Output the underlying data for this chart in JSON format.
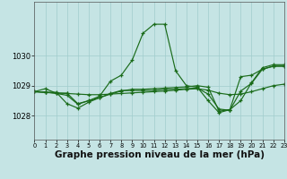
{
  "background_color": "#c5e4e4",
  "grid_color": "#a0cccc",
  "line_color": "#1a6b1a",
  "xlabel": "Graphe pression niveau de la mer (hPa)",
  "xlabel_fontsize": 7.5,
  "x_ticks": [
    0,
    1,
    2,
    3,
    4,
    5,
    6,
    7,
    8,
    9,
    10,
    11,
    12,
    13,
    14,
    15,
    16,
    17,
    18,
    19,
    20,
    21,
    22,
    23
  ],
  "xlim": [
    0,
    23
  ],
  "ylim": [
    1027.2,
    1031.8
  ],
  "yticks": [
    1028,
    1029,
    1030
  ],
  "series": {
    "line1": [
      1028.8,
      1028.9,
      1028.75,
      1028.75,
      1028.4,
      1028.5,
      1028.65,
      1029.15,
      1029.35,
      1029.85,
      1030.75,
      1031.05,
      1031.05,
      1029.5,
      1029.0,
      1028.95,
      1028.5,
      1028.1,
      1028.2,
      1028.5,
      1029.1,
      1029.6,
      1029.7,
      1029.7
    ],
    "line2": [
      1028.8,
      1028.78,
      1028.76,
      1028.74,
      1028.72,
      1028.7,
      1028.7,
      1028.72,
      1028.74,
      1028.76,
      1028.78,
      1028.8,
      1028.82,
      1028.85,
      1028.88,
      1028.9,
      1028.85,
      1028.75,
      1028.7,
      1028.72,
      1028.8,
      1028.9,
      1029.0,
      1029.05
    ],
    "line3": [
      1028.8,
      1028.78,
      1028.78,
      1028.4,
      1028.25,
      1028.45,
      1028.6,
      1028.72,
      1028.82,
      1028.88,
      1028.88,
      1028.9,
      1028.92,
      1028.94,
      1028.96,
      1029.0,
      1028.95,
      1028.15,
      1028.2,
      1029.3,
      1029.35,
      1029.55,
      1029.65,
      1029.65
    ],
    "line4": [
      1028.8,
      1028.78,
      1028.74,
      1028.68,
      1028.38,
      1028.5,
      1028.6,
      1028.74,
      1028.84,
      1028.84,
      1028.84,
      1028.84,
      1028.88,
      1028.88,
      1028.9,
      1028.92,
      1028.72,
      1028.22,
      1028.18,
      1028.82,
      1029.08,
      1029.55,
      1029.65,
      1029.65
    ]
  }
}
